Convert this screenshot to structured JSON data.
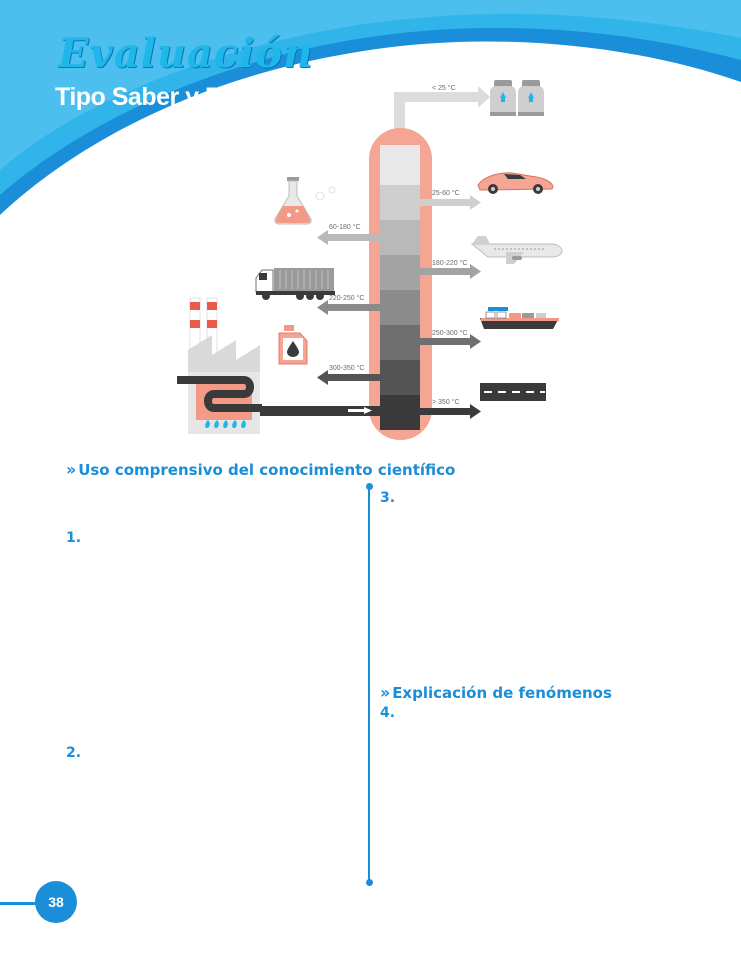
{
  "header": {
    "title": "Evaluación",
    "subtitle": "Tipo Saber y Pisa",
    "colors": {
      "primary": "#1a8ed8",
      "accent": "#1fb7ea",
      "salmon": "#f29a86"
    }
  },
  "diagram": {
    "temperatures": {
      "top": "< 25 °C",
      "t1": "25-60 °C",
      "t2": "60-180 °C",
      "t3": "180-220 °C",
      "t4": "220-250 °C",
      "t5": "250-300 °C",
      "t6": "300-350 °C",
      "t7": "> 350 °C"
    },
    "icons": [
      "gas-cylinder-icon",
      "sports-car-icon",
      "flask-icon",
      "airplane-icon",
      "truck-icon",
      "oil-can-icon",
      "ship-icon",
      "factory-icon",
      "road-icon"
    ]
  },
  "sections": {
    "s1": "Uso comprensivo del conocimiento científico",
    "s2": "Explicación de fenómenos"
  },
  "questions": {
    "q1": "1.",
    "q2": "2.",
    "q3": "3.",
    "q4": "4."
  },
  "page_number": "38"
}
